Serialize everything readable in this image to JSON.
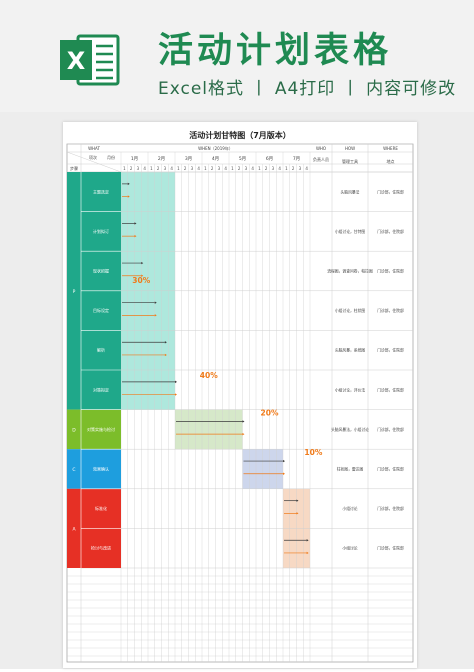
{
  "header": {
    "title": "活动计划表格",
    "subtitle": "Excel格式 丨 A4打印 丨 内容可修改",
    "icon": "excel-icon",
    "icon_letter": "X"
  },
  "sheet": {
    "title": "活动计划甘特图（7月版本）",
    "headers": {
      "what": "WHAT",
      "when": "WHEN（2019年）",
      "who": "WHO",
      "how": "HOW",
      "where": "WHERE",
      "phase": "步骤",
      "item": "项次",
      "month": "月份",
      "responsible": "负责人员",
      "tools": "管理工具",
      "location": "地点"
    },
    "months": [
      "1月",
      "2月",
      "3月",
      "4月",
      "5月",
      "6月",
      "7月"
    ],
    "weeks": [
      "1",
      "2",
      "3",
      "4"
    ],
    "phases": [
      {
        "code": "P",
        "color": "#1fa88a",
        "span": [
          0,
          6
        ]
      },
      {
        "code": "D",
        "color": "#7cbd2a",
        "span": [
          6,
          7
        ]
      },
      {
        "code": "C",
        "color": "#1e9ede",
        "span": [
          7,
          8
        ]
      },
      {
        "code": "A",
        "color": "#e63025",
        "span": [
          8,
          10
        ]
      }
    ],
    "tasks": [
      {
        "name": "主题选定",
        "tools": "头脑风暴法",
        "location": "门诊部，住院部"
      },
      {
        "name": "计划拟订",
        "tools": "小组讨论，甘特图",
        "location": "门诊部，住院部"
      },
      {
        "name": "现状把握",
        "tools": "流程图，调查问卷，帕拉图",
        "location": "门诊部，住院部"
      },
      {
        "name": "目标设定",
        "tools": "小组讨论，柱状图",
        "location": "门诊部，住院部"
      },
      {
        "name": "解析",
        "tools": "头脑风暴，系统图",
        "location": "门诊部，住院部"
      },
      {
        "name": "对策拟定",
        "tools": "小组讨论，评价法",
        "location": "门诊部，住院部"
      },
      {
        "name": "对策实施与检讨",
        "tools": "头脑风暴法，小组讨论",
        "location": "门诊部，住院部"
      },
      {
        "name": "效果确认",
        "tools": "柱状图，雷达图",
        "location": "门诊部，住院部"
      },
      {
        "name": "标准化",
        "tools": "小组讨论",
        "location": "门诊部，住院部"
      },
      {
        "name": "检讨与改进",
        "tools": "小组讨论",
        "location": "门诊部，住院部"
      }
    ],
    "phase_blocks": [
      {
        "label": "30%",
        "start_week": 0,
        "end_week": 8,
        "row_start": 0,
        "row_end": 6,
        "color": "#aee8dd"
      },
      {
        "label": "40%",
        "start_week": 0,
        "end_week": 8,
        "row_start": 0,
        "row_end": 6,
        "color": "#aee8dd"
      },
      {
        "label": "20%",
        "start_week": 8,
        "end_week": 18,
        "row_start": 6,
        "row_end": 7,
        "color": "#d6e8c9"
      },
      {
        "label": "10%",
        "start_week": 18,
        "end_week": 24,
        "row_start": 7,
        "row_end": 8,
        "color": "#cdd6ec"
      },
      {
        "label": "",
        "start_week": 24,
        "end_week": 28,
        "row_start": 8,
        "row_end": 10,
        "color": "#f7d9c4"
      }
    ],
    "plan_bars": [
      {
        "row": 0,
        "start": 0.0,
        "end": 1.0
      },
      {
        "row": 1,
        "start": 0.0,
        "end": 2.0
      },
      {
        "row": 2,
        "start": 0.0,
        "end": 3.0
      },
      {
        "row": 3,
        "start": 0.0,
        "end": 5.0
      },
      {
        "row": 4,
        "start": 0.0,
        "end": 6.5
      },
      {
        "row": 5,
        "start": 0.0,
        "end": 8.0
      },
      {
        "row": 6,
        "start": 8.0,
        "end": 18.0
      },
      {
        "row": 7,
        "start": 18.0,
        "end": 24.0
      },
      {
        "row": 8,
        "start": 24.0,
        "end": 26.0
      },
      {
        "row": 9,
        "start": 24.0,
        "end": 27.5
      }
    ],
    "colors": {
      "plan": "#3a3a3a",
      "actual": "#f07a18",
      "percent": "#f07a18",
      "grid": "#cfcfcf"
    }
  }
}
